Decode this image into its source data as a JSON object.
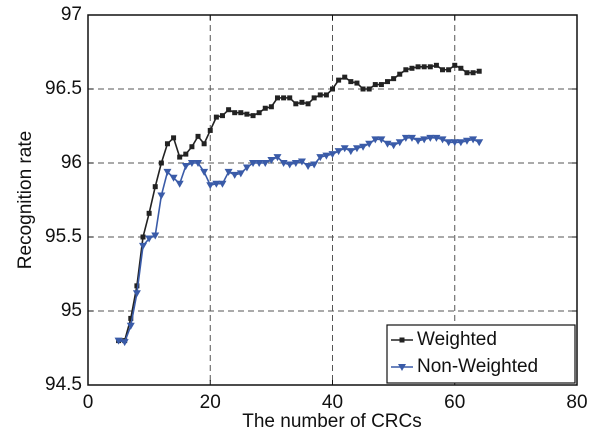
{
  "chart_data": {
    "type": "line",
    "x_label": "The number of CRCs",
    "y_label": "Recognition rate",
    "x": [
      5,
      6,
      7,
      8,
      9,
      10,
      11,
      12,
      13,
      14,
      15,
      16,
      17,
      18,
      19,
      20,
      21,
      22,
      23,
      24,
      25,
      26,
      27,
      28,
      29,
      30,
      31,
      32,
      33,
      34,
      35,
      36,
      37,
      38,
      39,
      40,
      41,
      42,
      43,
      44,
      45,
      46,
      47,
      48,
      49,
      50,
      51,
      52,
      53,
      54,
      55,
      56,
      57,
      58,
      59,
      60,
      61,
      62,
      63,
      64
    ],
    "series": [
      {
        "name": "Weighted",
        "color": "#222222",
        "marker": "square",
        "values": [
          94.8,
          94.8,
          94.95,
          95.17,
          95.5,
          95.66,
          95.84,
          96.0,
          96.13,
          96.17,
          96.04,
          96.06,
          96.11,
          96.18,
          96.13,
          96.22,
          96.31,
          96.32,
          96.36,
          96.34,
          96.34,
          96.33,
          96.32,
          96.34,
          96.37,
          96.38,
          96.44,
          96.44,
          96.44,
          96.4,
          96.41,
          96.4,
          96.44,
          96.46,
          96.46,
          96.5,
          96.56,
          96.58,
          96.55,
          96.54,
          96.5,
          96.5,
          96.53,
          96.53,
          96.55,
          96.57,
          96.6,
          96.63,
          96.64,
          96.65,
          96.65,
          96.65,
          96.66,
          96.63,
          96.63,
          96.66,
          96.64,
          96.61,
          96.61,
          96.62
        ]
      },
      {
        "name": "Non-Weighted",
        "color": "#3a5ba8",
        "marker": "triangle-down",
        "values": [
          94.8,
          94.79,
          94.9,
          95.12,
          95.44,
          95.49,
          95.51,
          95.78,
          95.94,
          95.9,
          95.86,
          95.98,
          96.0,
          96.0,
          95.94,
          95.85,
          95.86,
          95.86,
          95.94,
          95.92,
          95.93,
          95.97,
          96.0,
          96.0,
          96.0,
          96.02,
          96.04,
          96.0,
          95.99,
          96.0,
          96.01,
          95.98,
          95.99,
          96.04,
          96.05,
          96.06,
          96.08,
          96.1,
          96.08,
          96.1,
          96.11,
          96.13,
          96.16,
          96.16,
          96.13,
          96.12,
          96.14,
          96.17,
          96.17,
          96.15,
          96.16,
          96.17,
          96.17,
          96.16,
          96.14,
          96.14,
          96.14,
          96.15,
          96.16,
          96.14
        ]
      }
    ],
    "xlim": [
      0,
      80
    ],
    "xticks": [
      0,
      20,
      40,
      60,
      80
    ],
    "ylim": [
      94.5,
      97
    ],
    "yticks": [
      94.5,
      95,
      95.5,
      96,
      96.5,
      97
    ],
    "grid": true,
    "legend": "lower right"
  }
}
